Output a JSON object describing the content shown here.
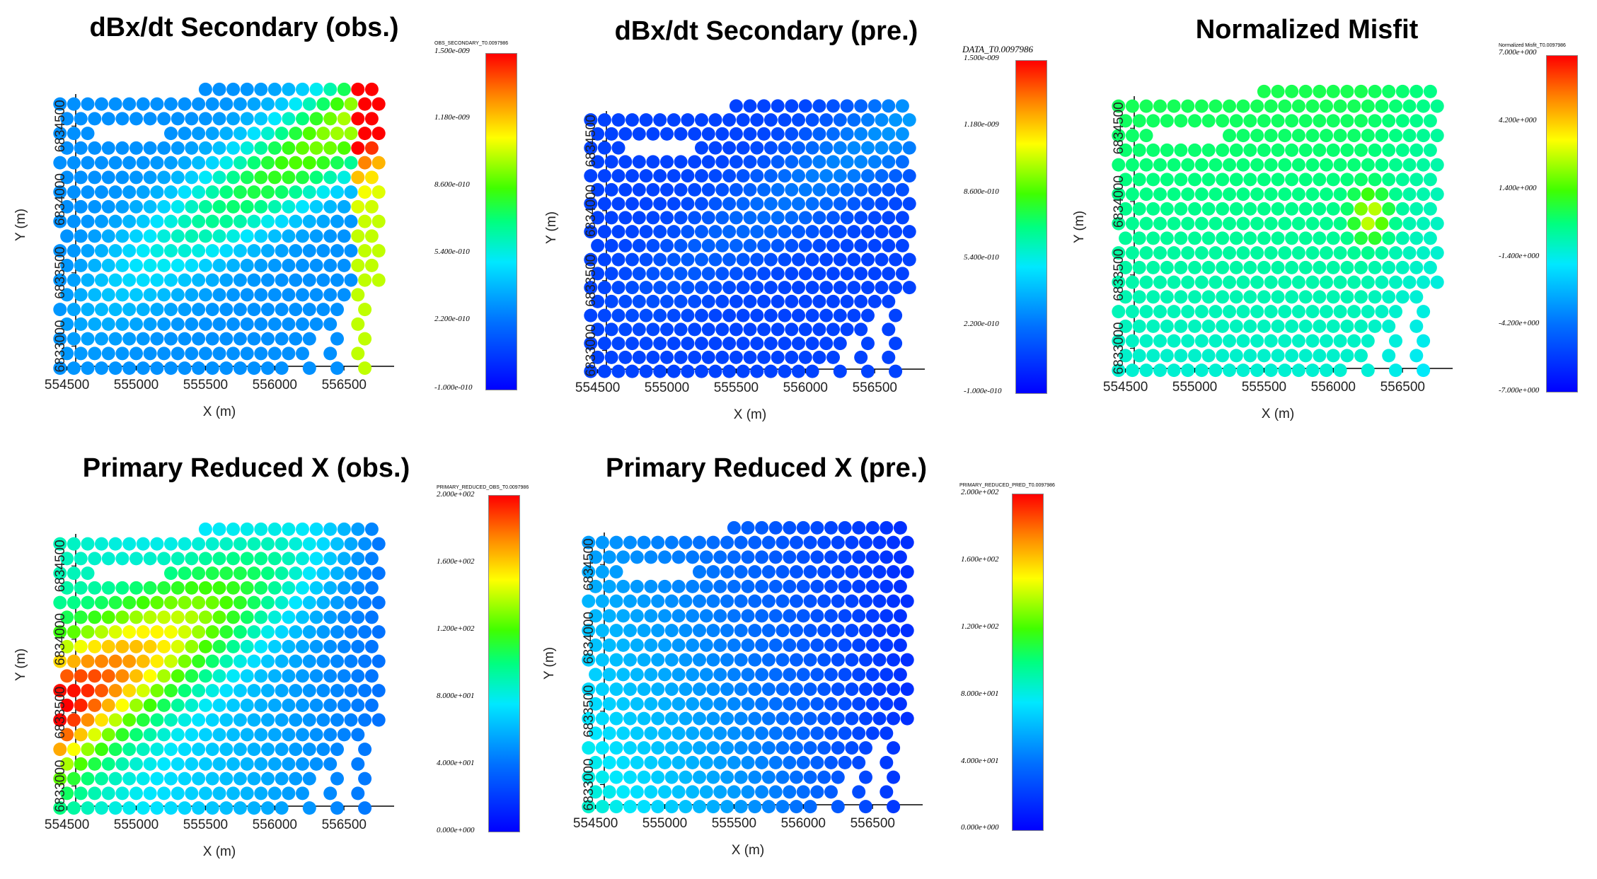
{
  "panels": [
    {
      "title": "dBx/dt Secondary (obs.)",
      "xlabel": "X (m)",
      "ylabel": "Y (m)",
      "xticks": [
        "554500",
        "555000",
        "555500",
        "556000",
        "556500"
      ],
      "yticks": [
        "6833000",
        "6833500",
        "6834000",
        "6834500"
      ],
      "colorbar": {
        "title": "OBS_SECONDARY_T0.0097986",
        "labels": [
          "1.500e-009",
          "1.180e-009",
          "8.600e-010",
          "5.400e-010",
          "2.200e-010",
          "-1.000e-010"
        ]
      }
    },
    {
      "title": "dBx/dt Secondary (pre.)",
      "xlabel": "X (m)",
      "ylabel": "Y (m)",
      "xticks": [
        "554500",
        "555000",
        "555500",
        "556000",
        "556500"
      ],
      "yticks": [
        "6833000",
        "6833500",
        "6834000",
        "6834500"
      ],
      "colorbar": {
        "title": "DATA_T0.0097986",
        "labels": [
          "1.500e-009",
          "1.180e-009",
          "8.600e-010",
          "5.400e-010",
          "2.200e-010",
          "-1.000e-010"
        ]
      }
    },
    {
      "title": "Normalized Misfit",
      "xlabel": "X (m)",
      "ylabel": "Y (m)",
      "xticks": [
        "554500",
        "555000",
        "555500",
        "556000",
        "556500"
      ],
      "yticks": [
        "6833000",
        "6833500",
        "6834000",
        "6834500"
      ],
      "colorbar": {
        "title": "Normalized Misfit_T0.0097986",
        "labels": [
          "7.000e+000",
          "4.200e+000",
          "1.400e+000",
          "-1.400e+000",
          "-4.200e+000",
          "-7.000e+000"
        ]
      }
    },
    {
      "title": "Primary Reduced X (obs.)",
      "xlabel": "X (m)",
      "ylabel": "Y (m)",
      "xticks": [
        "554500",
        "555000",
        "555500",
        "556000",
        "556500"
      ],
      "yticks": [
        "6833000",
        "6833500",
        "6834000",
        "6834500"
      ],
      "colorbar": {
        "title": "PRIMARY_REDUCED_OBS_T0.0097986",
        "labels": [
          "2.000e+002",
          "1.600e+002",
          "1.200e+002",
          "8.000e+001",
          "4.000e+001",
          "0.000e+000"
        ]
      }
    },
    {
      "title": "Primary Reduced X (pre.)",
      "xlabel": "X (m)",
      "ylabel": "Y (m)",
      "xticks": [
        "554500",
        "555000",
        "555500",
        "556000",
        "556500"
      ],
      "yticks": [
        "6833000",
        "6833500",
        "6834000",
        "6834500"
      ],
      "colorbar": {
        "title": "PRIMARY_REDUCED_PRED_T0.0097986",
        "labels": [
          "2.000e+002",
          "1.600e+002",
          "1.200e+002",
          "8.000e+001",
          "4.000e+001",
          "0.000e+000"
        ]
      }
    }
  ],
  "chart_data": [
    {
      "type": "scatter",
      "title": "dBx/dt Secondary (obs.)",
      "xlabel": "X (m)",
      "ylabel": "Y (m)",
      "xlim": [
        554400,
        556800
      ],
      "ylim": [
        6832800,
        6834800
      ],
      "color_range": [
        -1e-10,
        1.5e-09
      ],
      "field": "obs_secondary"
    },
    {
      "type": "scatter",
      "title": "dBx/dt Secondary (pre.)",
      "xlabel": "X (m)",
      "ylabel": "Y (m)",
      "xlim": [
        554400,
        556800
      ],
      "ylim": [
        6832800,
        6834800
      ],
      "color_range": [
        -1e-10,
        1.5e-09
      ],
      "field": "pre_secondary"
    },
    {
      "type": "scatter",
      "title": "Normalized Misfit",
      "xlabel": "X (m)",
      "ylabel": "Y (m)",
      "xlim": [
        554400,
        556800
      ],
      "ylim": [
        6832800,
        6834800
      ],
      "color_range": [
        -7.0,
        7.0
      ],
      "field": "misfit"
    },
    {
      "type": "scatter",
      "title": "Primary Reduced X (obs.)",
      "xlabel": "X (m)",
      "ylabel": "Y (m)",
      "xlim": [
        554400,
        556800
      ],
      "ylim": [
        6832800,
        6834800
      ],
      "color_range": [
        0,
        200
      ],
      "field": "obs_primary"
    },
    {
      "type": "scatter",
      "title": "Primary Reduced X (pre.)",
      "xlabel": "X (m)",
      "ylabel": "Y (m)",
      "xlim": [
        554400,
        556800
      ],
      "ylim": [
        6832800,
        6834800
      ],
      "color_range": [
        0,
        200
      ],
      "field": "pre_primary"
    }
  ]
}
